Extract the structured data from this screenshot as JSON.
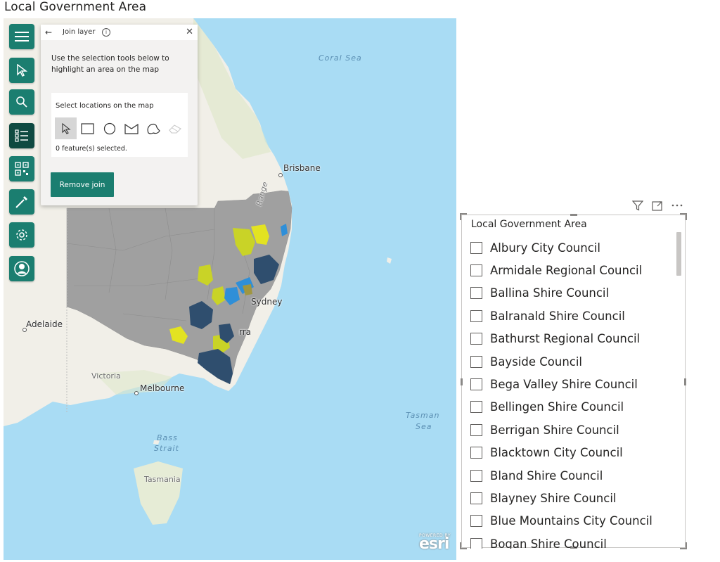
{
  "page": {
    "title": "Local Government Area"
  },
  "map": {
    "labels": {
      "coral_sea": "Coral Sea",
      "brisbane": "Brisbane",
      "range": "Range",
      "sydney": "Sydney",
      "canberra_partial": "rra",
      "adelaide": "Adelaide",
      "victoria": "Victoria",
      "melbourne": "Melbourne",
      "tasman_sea_1": "Tasman",
      "tasman_sea_2": "Sea",
      "bass_strait_1": "Bass",
      "bass_strait_2": "Strait",
      "tasmania": "Tasmania"
    },
    "logo": {
      "powered_by": "POWERED BY",
      "text": "esri"
    },
    "colors": {
      "water": "#a9dcf4",
      "land": "#f1efe8",
      "region_base": "#a0a0a0",
      "yellow": "#c9d327",
      "blue": "#2f8fd8",
      "navy": "#2f4e6e"
    }
  },
  "toolbar": {
    "items": [
      {
        "icon": "hamburger-menu-icon"
      },
      {
        "icon": "pointer-select-icon"
      },
      {
        "icon": "search-icon"
      },
      {
        "icon": "layers-list-icon",
        "active": true
      },
      {
        "icon": "qr-grid-icon"
      },
      {
        "icon": "pipette-icon"
      },
      {
        "icon": "gear-icon"
      },
      {
        "icon": "user-icon"
      }
    ]
  },
  "join_panel": {
    "title": "Join layer",
    "description": "Use the selection tools below to highlight an area on the map",
    "select_title": "Select locations on the map",
    "selection_count": "0 feature(s) selected.",
    "remove_button": "Remove join",
    "tools": [
      "pointer-tool-icon",
      "rectangle-tool-icon",
      "circle-tool-icon",
      "lasso-tool-icon",
      "freehand-tool-icon",
      "eraser-tool-icon"
    ]
  },
  "slicer": {
    "title": "Local Government Area",
    "items": [
      "Albury City Council",
      "Armidale Regional Council",
      "Ballina Shire Council",
      "Balranald Shire Council",
      "Bathurst Regional Council",
      "Bayside Council",
      "Bega Valley Shire Council",
      "Bellingen Shire Council",
      "Berrigan Shire Council",
      "Blacktown City Council",
      "Bland Shire Council",
      "Blayney Shire Council",
      "Blue Mountains City Council",
      "Bogan Shire Council"
    ]
  }
}
